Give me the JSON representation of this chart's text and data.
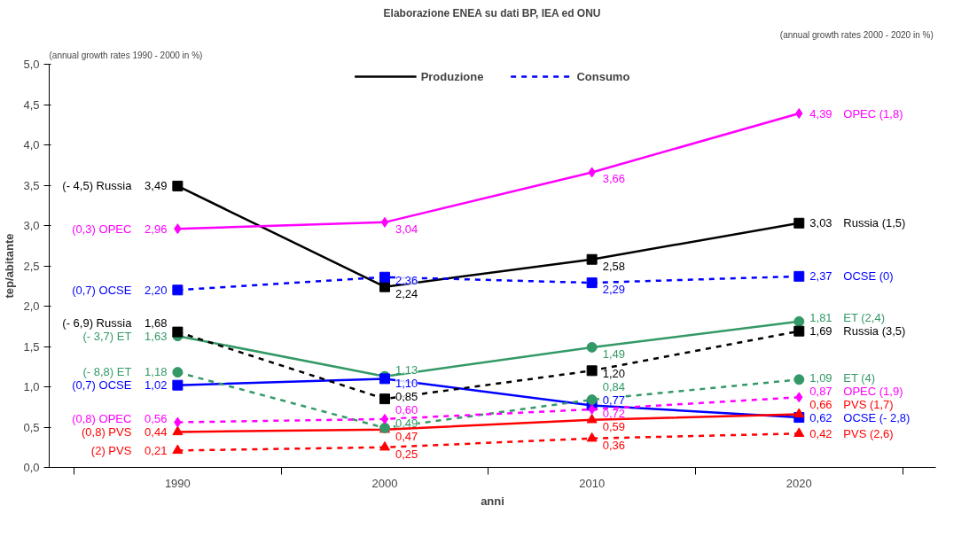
{
  "chart_data": {
    "type": "line",
    "title": "Elaborazione ENEA su dati BP, IEA ed ONU",
    "xlabel": "anni",
    "ylabel": "tep/abitante",
    "categories": [
      "1990",
      "2000",
      "2010",
      "2020"
    ],
    "ylim": [
      0,
      5
    ],
    "yticks": [
      {
        "value": 0,
        "label": "0,0"
      },
      {
        "value": 0.5,
        "label": "0,5"
      },
      {
        "value": 1,
        "label": "1,0"
      },
      {
        "value": 1.5,
        "label": "1,5"
      },
      {
        "value": 2,
        "label": "2,0"
      },
      {
        "value": 2.5,
        "label": "2,5"
      },
      {
        "value": 3,
        "label": "3,0"
      },
      {
        "value": 3.5,
        "label": "3,5"
      },
      {
        "value": 4,
        "label": "4,0"
      },
      {
        "value": 4.5,
        "label": "4,5"
      },
      {
        "value": 5,
        "label": "5,0"
      }
    ],
    "grid": false,
    "series": [
      {
        "color": "#000000",
        "marker": "square",
        "line_style": "solid",
        "values": [
          3.49,
          2.24,
          2.58,
          3.03
        ],
        "value_labels": [
          "3,49",
          "2,24",
          "2,58",
          "3,03"
        ]
      },
      {
        "color": "#ff00ff",
        "marker": "diamond",
        "line_style": "solid",
        "values": [
          2.96,
          3.04,
          3.66,
          4.39
        ],
        "value_labels": [
          "2,96",
          "3,04",
          "3,66",
          "4,39"
        ]
      },
      {
        "color": "#339966",
        "marker": "circle",
        "line_style": "solid",
        "values": [
          1.63,
          1.13,
          1.49,
          1.81
        ],
        "value_labels": [
          "1,63",
          "1,13",
          "1,49",
          "1,81"
        ]
      },
      {
        "color": "#0000ff",
        "marker": "square",
        "line_style": "solid",
        "values": [
          1.02,
          1.1,
          0.77,
          0.62
        ],
        "value_labels": [
          "1,02",
          "1,10",
          "0,77",
          "0,62"
        ]
      },
      {
        "color": "#ff0000",
        "marker": "triangle",
        "line_style": "solid",
        "values": [
          0.44,
          0.47,
          0.59,
          0.66
        ],
        "value_labels": [
          "0,44",
          "0,47",
          "0,59",
          "0,66"
        ]
      },
      {
        "color": "#0000ff",
        "marker": "square",
        "line_style": "dashed",
        "values": [
          2.2,
          2.36,
          2.29,
          2.37
        ],
        "value_labels": [
          "2,20",
          "2,36",
          "2,29",
          "2,37"
        ]
      },
      {
        "color": "#000000",
        "marker": "square",
        "line_style": "dashed",
        "values": [
          1.68,
          0.85,
          1.2,
          1.69
        ],
        "value_labels": [
          "1,68",
          "0,85",
          "1,20",
          "1,69"
        ]
      },
      {
        "color": "#339966",
        "marker": "circle",
        "line_style": "dashed",
        "values": [
          1.18,
          0.49,
          0.84,
          1.09
        ],
        "value_labels": [
          "1,18",
          "0,49",
          "0,84",
          "1,09"
        ]
      },
      {
        "color": "#ff00ff",
        "marker": "diamond",
        "line_style": "dashed",
        "values": [
          0.56,
          0.6,
          0.72,
          0.87
        ],
        "value_labels": [
          "0,56",
          "0,60",
          "0,72",
          "0,87"
        ]
      },
      {
        "color": "#ff0000",
        "marker": "triangle",
        "line_style": "dashed",
        "values": [
          0.21,
          0.25,
          0.36,
          0.42
        ],
        "value_labels": [
          "0,21",
          "0,25",
          "0,36",
          "0,42"
        ]
      }
    ],
    "annotations": [
      "Produzione",
      "Consumo",
      "(annual growth rates 1990 - 2000  in %)",
      "(annual growth rates 2000 - 2020  in %)",
      "(- 4,5) Russia",
      "(0,3) OPEC",
      "(- 3,7) ET",
      "(0,7) OCSE",
      "(0,8) PVS",
      "(0,7) OCSE",
      "(- 6,9) Russia",
      "(- 8,8) ET",
      "(0,8) OPEC",
      "(2) PVS",
      "Russia (1,5)",
      "OPEC (1,8)",
      "ET (2,4)",
      "OCSE (- 2,8)",
      "PVS (1,7)",
      "OCSE (0)",
      "Russia (3,5)",
      "ET (4)",
      "OPEC (1,9)",
      "PVS (2,6)"
    ]
  }
}
